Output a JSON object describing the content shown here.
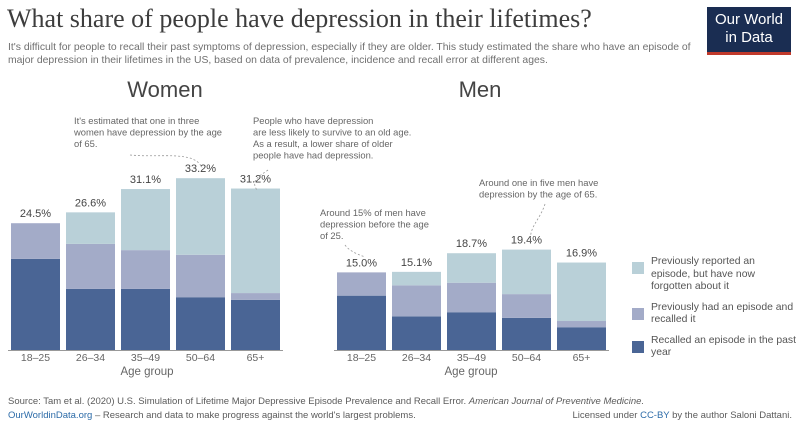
{
  "title": "What share of people have depression in their lifetimes?",
  "subtitle": "It's difficult for people to recall their past symptoms of depression, especially if they are older. This study estimated the share who have an episode of major depression in their lifetimes in the US, based on data of prevalence, incidence and recall error at different ages.",
  "logo": {
    "line1": "Our World",
    "line2": "in Data",
    "bg": "#1a2d52",
    "accent": "#c0392b"
  },
  "colors": {
    "recent": "#4a6595",
    "recalled": "#a3abc8",
    "forgotten": "#b9d0d8",
    "axis": "#999999"
  },
  "legend": [
    {
      "key": "forgotten",
      "label": "Previously reported an episode, but have now forgotten about it"
    },
    {
      "key": "recalled",
      "label": "Previously had an episode and recalled it"
    },
    {
      "key": "recent",
      "label": "Recalled an episode in the past year"
    }
  ],
  "annotations": {
    "women_1": [
      "It's estimated that one in three",
      "women have depression by the age",
      "of 65."
    ],
    "women_2": [
      "People who have depression",
      "are less likely to survive to an old age.",
      "As a result, a lower share of older",
      "people have had depression."
    ],
    "men_1": [
      "Around 15% of men have",
      "depression before the age",
      "of 25."
    ],
    "men_2": [
      "Around one in five men have",
      "depression by the age of 65."
    ]
  },
  "chart_data": [
    {
      "type": "bar",
      "title": "Women",
      "xlabel": "Age group",
      "stacked": true,
      "categories": [
        "18–25",
        "26–34",
        "35–49",
        "50–64",
        "65+"
      ],
      "totals_labels": [
        "24.5%",
        "26.6%",
        "31.1%",
        "33.2%",
        "31.2%"
      ],
      "ylim": [
        0,
        35
      ],
      "series": [
        {
          "name": "Recalled an episode in the past year",
          "key": "recent",
          "values": [
            17.6,
            11.8,
            11.8,
            10.2,
            9.7
          ]
        },
        {
          "name": "Previously had an episode and recalled it",
          "key": "recalled",
          "values": [
            6.9,
            8.7,
            7.5,
            8.2,
            1.3
          ]
        },
        {
          "name": "Previously reported an episode, but have now forgotten about it",
          "key": "forgotten",
          "values": [
            0,
            6.1,
            11.8,
            14.8,
            20.2
          ]
        }
      ]
    },
    {
      "type": "bar",
      "title": "Men",
      "xlabel": "Age group",
      "stacked": true,
      "categories": [
        "18–25",
        "26–34",
        "35–49",
        "50–64",
        "65+"
      ],
      "totals_labels": [
        "15.0%",
        "15.1%",
        "18.7%",
        "19.4%",
        "16.9%"
      ],
      "ylim": [
        0,
        35
      ],
      "series": [
        {
          "name": "Recalled an episode in the past year",
          "key": "recent",
          "values": [
            10.5,
            6.5,
            7.3,
            6.2,
            4.4
          ]
        },
        {
          "name": "Previously had an episode and recalled it",
          "key": "recalled",
          "values": [
            4.5,
            6.0,
            5.7,
            4.6,
            1.2
          ]
        },
        {
          "name": "Previously reported an episode, but have now forgotten about it",
          "key": "forgotten",
          "values": [
            0,
            2.6,
            5.7,
            8.6,
            11.3
          ]
        }
      ]
    }
  ],
  "footer": {
    "source_prefix": "Source: Tam et al. (2020) U.S. Simulation of Lifetime Major Depressive Episode Prevalence and Recall Error.",
    "source_journal": "American Journal of Preventive Medicine.",
    "site_link": "OurWorldinData.org",
    "site_text": " – Research and data to make progress against the world's largest problems.",
    "license_prefix": "Licensed under ",
    "license_link": "CC-BY",
    "license_suffix": " by the author Saloni Dattani."
  }
}
